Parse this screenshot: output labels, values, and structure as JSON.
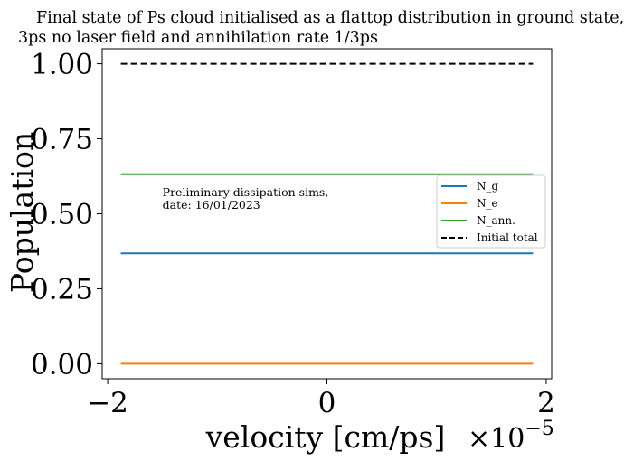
{
  "chart_data": {
    "type": "line",
    "title_line1": "Final state of Ps cloud initialised as a flattop distribution in ground state,",
    "title_line2": "3ps no laser field and annihilation rate 1/3ps",
    "xlabel": "velocity [cm/ps]",
    "ylabel": "Population",
    "x_offset_base": "×10",
    "x_offset_exp": "−5",
    "xlim": [
      -2.05,
      2.05
    ],
    "ylim": [
      -0.05,
      1.05
    ],
    "x_ticks": [
      {
        "value": -2,
        "label": "−2"
      },
      {
        "value": 0,
        "label": "0"
      },
      {
        "value": 2,
        "label": "2"
      }
    ],
    "y_ticks": [
      {
        "value": 0.0,
        "label": "0.00"
      },
      {
        "value": 0.25,
        "label": "0.25"
      },
      {
        "value": 0.5,
        "label": "0.50"
      },
      {
        "value": 0.75,
        "label": "0.75"
      },
      {
        "value": 1.0,
        "label": "1.00"
      }
    ],
    "series": [
      {
        "name": "N_g",
        "color": "#1f77b4",
        "dash": "solid",
        "x": [
          -1.88,
          1.88
        ],
        "y": [
          0.368,
          0.368
        ]
      },
      {
        "name": "N_e",
        "color": "#ff7f0e",
        "dash": "solid",
        "x": [
          -1.88,
          1.88
        ],
        "y": [
          0.0,
          0.0
        ]
      },
      {
        "name": "N_ann.",
        "color": "#2ca02c",
        "dash": "solid",
        "x": [
          -1.88,
          1.88
        ],
        "y": [
          0.632,
          0.632
        ]
      },
      {
        "name": "Initial total",
        "color": "#000000",
        "dash": "dashed",
        "x": [
          -1.88,
          1.88
        ],
        "y": [
          1.0,
          1.0
        ]
      }
    ],
    "legend_position": "center-right",
    "annotation": {
      "line1": "Preliminary dissipation sims,",
      "line2": "date: 16/01/2023",
      "x": -1.5,
      "y": 0.55
    },
    "grid": false
  }
}
